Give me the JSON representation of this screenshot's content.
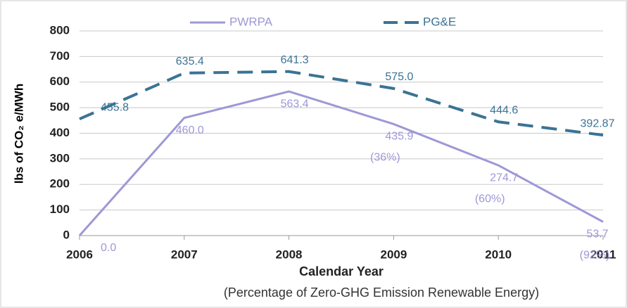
{
  "chart_data": {
    "type": "line",
    "y_label": "lbs of CO₂ e/MWh",
    "x_label": "Calendar Year",
    "subtitle": "(Percentage of Zero-GHG Emission Renewable Energy)",
    "x": [
      2006,
      2007,
      2008,
      2009,
      2010,
      2011
    ],
    "series": [
      {
        "name": "PWRPA",
        "color": "#9d98d6",
        "dash": false,
        "values": [
          0.0,
          460.0,
          563.4,
          435.9,
          274.7,
          53.7
        ],
        "value_labels": [
          "0.0",
          "460.0",
          "563.4",
          "435.9",
          "274.7",
          "53.7"
        ]
      },
      {
        "name": "PG&E",
        "color": "#3b7394",
        "dash": true,
        "values": [
          455.8,
          635.4,
          641.3,
          575.0,
          444.6,
          392.87
        ],
        "value_labels": [
          "455.8",
          "635.4",
          "641.3",
          "575.0",
          "444.6",
          "392.87"
        ]
      }
    ],
    "annotations": [
      {
        "x": 2009,
        "text": "(36%)"
      },
      {
        "x": 2010,
        "text": "(60%)"
      },
      {
        "x": 2011,
        "text": "(92%)"
      }
    ],
    "xlim": [
      2006,
      2011
    ],
    "xticks": [
      2006,
      2007,
      2008,
      2009,
      2010,
      2011
    ],
    "ylim": [
      0,
      800
    ],
    "yticks": [
      0,
      100,
      200,
      300,
      400,
      500,
      600,
      700,
      800
    ],
    "grid": true
  }
}
